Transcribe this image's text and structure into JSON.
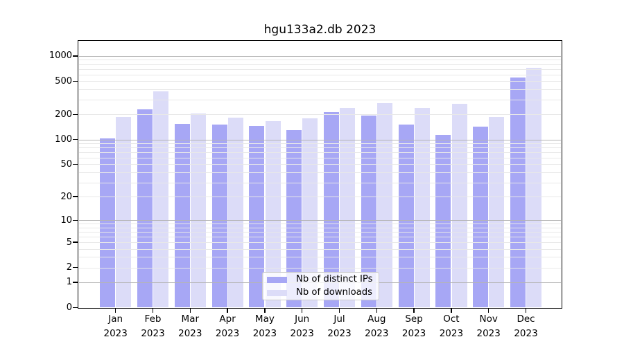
{
  "title": "hgu133a2.db 2023",
  "chart_data": {
    "type": "bar",
    "title": "hgu133a2.db 2023",
    "x": {
      "months": [
        "Jan",
        "Feb",
        "Mar",
        "Apr",
        "May",
        "Jun",
        "Jul",
        "Aug",
        "Sep",
        "Oct",
        "Nov",
        "Dec"
      ],
      "year_label": "2023"
    },
    "series": [
      {
        "name": "Nb of distinct IPs",
        "color": "#a7a7f5",
        "values": [
          103,
          230,
          155,
          150,
          145,
          130,
          215,
          192,
          150,
          113,
          143,
          550
        ]
      },
      {
        "name": "Nb of downloads",
        "color": "#dcdcf8",
        "values": [
          185,
          380,
          207,
          182,
          165,
          178,
          240,
          275,
          238,
          270,
          185,
          720
        ]
      }
    ],
    "y_axis": {
      "scale": "log10(v+1)",
      "range": [
        0,
        1500
      ],
      "tick_labels": [
        "1000",
        "500",
        "200",
        "100",
        "50",
        "20",
        "10",
        "5",
        "2",
        "1",
        "0"
      ],
      "tick_values": [
        1000,
        500,
        200,
        100,
        50,
        20,
        10,
        5,
        2,
        1,
        0
      ],
      "gridlines_major": [
        1,
        10,
        100,
        1000
      ],
      "gridlines_minor": [
        2,
        3,
        4,
        5,
        6,
        7,
        8,
        9,
        20,
        30,
        40,
        50,
        60,
        70,
        80,
        90,
        200,
        300,
        400,
        500,
        600,
        700,
        800,
        900
      ]
    },
    "legend": {
      "position": "bottom-center",
      "entries": [
        "Nb of distinct IPs",
        "Nb of downloads"
      ]
    },
    "colors": {
      "major_gridline": "#b4b4b4",
      "minor_gridline": "#e8e8e8",
      "axis_box": "#000000"
    }
  }
}
